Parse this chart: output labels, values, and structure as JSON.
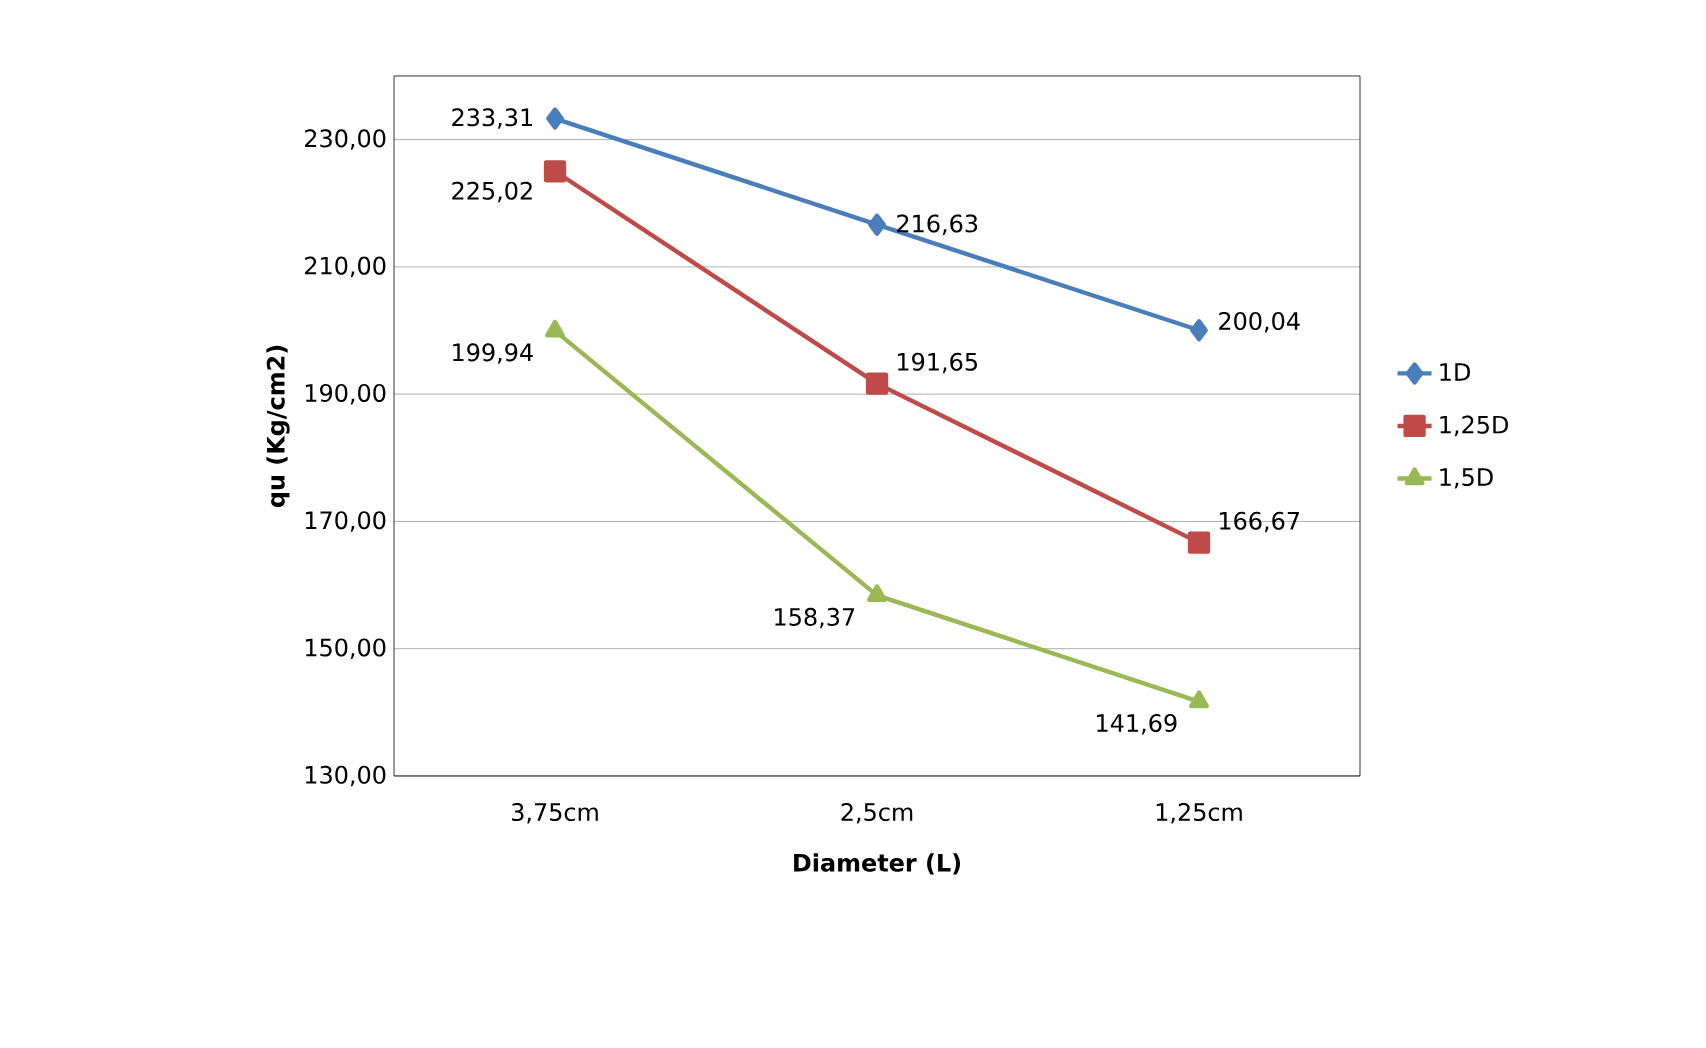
{
  "chart_data": {
    "type": "line",
    "xlabel": "Diameter (L)",
    "ylabel": "qu (Kg/cm2)",
    "categories": [
      "3,75cm",
      "2,5cm",
      "1,25cm"
    ],
    "series": [
      {
        "name": "1D",
        "color": "#4a7ebb",
        "marker": "diamond",
        "values": [
          233.31,
          216.63,
          200.04
        ],
        "value_labels": [
          "233,31",
          "216,63",
          "200,04"
        ]
      },
      {
        "name": "1,25D",
        "color": "#be4b48",
        "marker": "square",
        "values": [
          225.02,
          191.65,
          166.67
        ],
        "value_labels": [
          "225,02",
          "191,65",
          "166,67"
        ]
      },
      {
        "name": "1,5D",
        "color": "#98b954",
        "marker": "triangle",
        "values": [
          199.94,
          158.37,
          141.69
        ],
        "value_labels": [
          "199,94",
          "158,37",
          "141,69"
        ]
      }
    ],
    "ylim": [
      130,
      240
    ],
    "yticks": [
      {
        "value": 130,
        "label": "130,00"
      },
      {
        "value": 150,
        "label": "150,00"
      },
      {
        "value": 170,
        "label": "170,00"
      },
      {
        "value": 190,
        "label": "190,00"
      },
      {
        "value": 210,
        "label": "210,00"
      },
      {
        "value": 230,
        "label": "230,00"
      }
    ],
    "grid": "y",
    "legend": "right",
    "line_style": "solid"
  }
}
